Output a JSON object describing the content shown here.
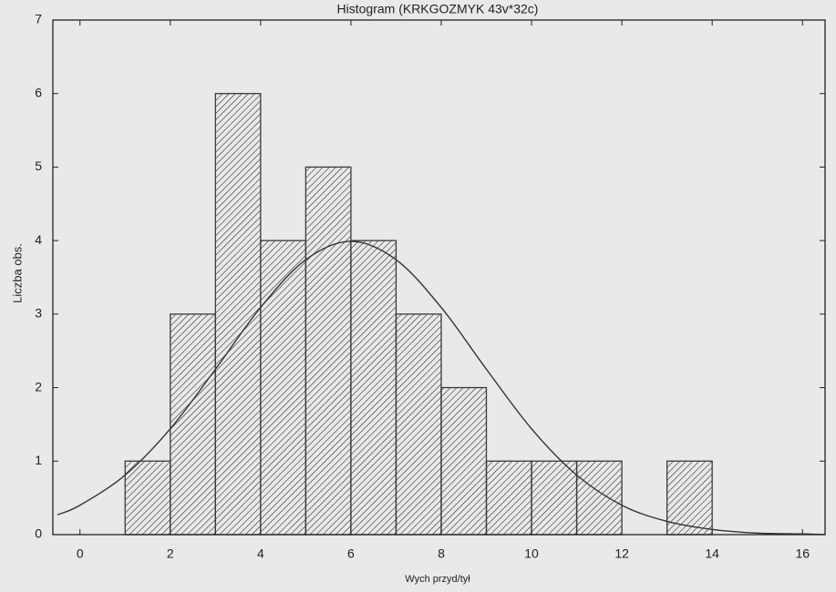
{
  "chart_data": {
    "type": "histogram",
    "title": "Histogram (KRKGOZMYK 43v*32c)",
    "x_label": "Wych przyd/tył",
    "y_label": "Liczba obs.",
    "bins": [
      1,
      2,
      3,
      4,
      5,
      6,
      7,
      8,
      9,
      10,
      11,
      12,
      13,
      14
    ],
    "counts": [
      1,
      3,
      6,
      4,
      5,
      4,
      3,
      2,
      1,
      1,
      1,
      0,
      1
    ],
    "color": "#3a3a3a",
    "curve": {
      "x": [
        -0.5,
        0,
        1,
        2,
        3,
        4,
        5,
        6,
        7,
        8,
        9,
        10,
        11,
        12,
        13,
        14,
        15,
        16,
        16.5
      ],
      "values": [
        0.27,
        0.4,
        0.81,
        1.44,
        2.25,
        3.09,
        3.74,
        3.99,
        3.74,
        3.09,
        2.25,
        1.44,
        0.81,
        0.4,
        0.18,
        0.07,
        0.02,
        0.01,
        0.0
      ],
      "color": "#333333"
    },
    "xlim": [
      -0.6,
      16.5
    ],
    "xticks": [
      0,
      2,
      4,
      6,
      8,
      10,
      12,
      14,
      16
    ],
    "ylim": [
      0,
      7
    ],
    "yticks": [
      0,
      1,
      2,
      3,
      4,
      5,
      6,
      7
    ],
    "grid": false
  }
}
